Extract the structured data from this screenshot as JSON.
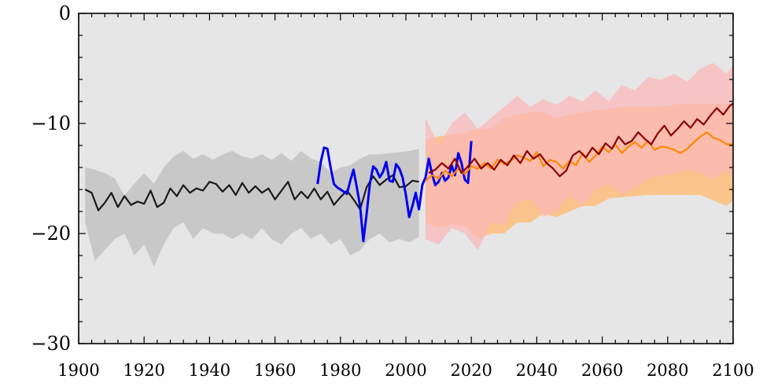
{
  "chart_data": {
    "type": "line",
    "title": "",
    "xlabel": "",
    "ylabel": "",
    "xlim": [
      1900,
      2100
    ],
    "ylim": [
      -30,
      0
    ],
    "x_ticks": [
      1900,
      1920,
      1940,
      1960,
      1980,
      2000,
      2020,
      2040,
      2060,
      2080,
      2100
    ],
    "x_tick_labels": [
      "1900",
      "1920",
      "1940",
      "1960",
      "1980",
      "2000",
      "2020",
      "2040",
      "2060",
      "2080",
      "2100"
    ],
    "y_ticks": [
      0,
      -10,
      -20,
      -30
    ],
    "y_tick_labels": [
      "0",
      "−10",
      "−20",
      "−30"
    ],
    "grid": false,
    "background": "#e6e6e6",
    "bands": [
      {
        "color": "#c8c8c8",
        "x": [
          1902,
          1905,
          1908,
          1911,
          1914,
          1917,
          1920,
          1923,
          1926,
          1929,
          1932,
          1935,
          1938,
          1941,
          1944,
          1947,
          1950,
          1953,
          1956,
          1959,
          1962,
          1965,
          1968,
          1971,
          1974,
          1977,
          1980,
          1983,
          1986,
          1989,
          1992,
          1995,
          1998,
          2001,
          2004
        ],
        "upper": [
          -14,
          -14.2,
          -14.5,
          -15,
          -16.5,
          -15.5,
          -14.5,
          -15.5,
          -14,
          -13,
          -12.5,
          -13.2,
          -12.8,
          -13.3,
          -12.8,
          -12.5,
          -13,
          -13.2,
          -12.8,
          -13.3,
          -12.7,
          -13.4,
          -12.5,
          -13.2,
          -13.5,
          -14.5,
          -14,
          -13.8,
          -13.2,
          -12.8,
          -12.8,
          -12.7,
          -12.6,
          -12.5,
          -12.3
        ],
        "lower": [
          -19,
          -22.5,
          -21.5,
          -20.5,
          -20,
          -22,
          -21,
          -23,
          -21,
          -19.5,
          -19,
          -20.5,
          -19.5,
          -20,
          -20,
          -20.5,
          -20,
          -20.5,
          -19.5,
          -20.5,
          -21,
          -20,
          -19.5,
          -20.5,
          -20,
          -21,
          -20.5,
          -22,
          -21.5,
          -20.5,
          -20,
          -20.8,
          -20.5,
          -20.8,
          -20.3
        ]
      },
      {
        "color": "#fbc48c",
        "x": [
          2006,
          2010,
          2014,
          2018,
          2022,
          2026,
          2030,
          2034,
          2038,
          2042,
          2046,
          2050,
          2054,
          2058,
          2062,
          2066,
          2070,
          2074,
          2078,
          2082,
          2086,
          2090,
          2094,
          2098,
          2100
        ],
        "upper": [
          -11.5,
          -11.2,
          -11,
          -10.8,
          -10.5,
          -10.5,
          -9.5,
          -9.2,
          -9,
          -9,
          -9.5,
          -9.2,
          -9,
          -8.8,
          -8.7,
          -8.5,
          -8.5,
          -8.5,
          -8.5,
          -8.3,
          -8.2,
          -8.2,
          -8.2,
          -8.2,
          -8.2
        ],
        "lower": [
          -19,
          -19.5,
          -19.2,
          -19.3,
          -20.5,
          -20,
          -20,
          -19,
          -19,
          -18.2,
          -18.5,
          -18,
          -17.5,
          -17.5,
          -16.8,
          -16.7,
          -16.6,
          -16.5,
          -16.5,
          -16.5,
          -16.5,
          -16.5,
          -17,
          -17.5,
          -17
        ]
      },
      {
        "color": "#fbb8b8",
        "opacity": 0.75,
        "x": [
          2006,
          2010,
          2014,
          2018,
          2022,
          2026,
          2030,
          2034,
          2038,
          2042,
          2046,
          2050,
          2054,
          2058,
          2062,
          2066,
          2070,
          2074,
          2078,
          2082,
          2086,
          2090,
          2094,
          2098,
          2100
        ],
        "upper": [
          -9.5,
          -12,
          -10,
          -9,
          -10.5,
          -9.5,
          -8.5,
          -7.5,
          -8.5,
          -7.8,
          -8.3,
          -7.5,
          -8,
          -7,
          -8,
          -6.5,
          -7,
          -5.8,
          -6,
          -5.5,
          -6.2,
          -5,
          -4.5,
          -5.5,
          -4.7
        ],
        "lower": [
          -20.5,
          -21,
          -19.5,
          -20,
          -21.5,
          -19,
          -19.2,
          -17.2,
          -16.8,
          -18.5,
          -18,
          -16.5,
          -17.5,
          -16,
          -15.5,
          -16.5,
          -15.8,
          -15,
          -14.8,
          -14.5,
          -14.2,
          -14.5,
          -15,
          -14.3,
          -15
        ]
      }
    ],
    "series": [
      {
        "color": "#1a1a1a",
        "x": [
          1902,
          1904,
          1906,
          1908,
          1910,
          1912,
          1914,
          1916,
          1918,
          1920,
          1922,
          1924,
          1926,
          1928,
          1930,
          1932,
          1934,
          1936,
          1938,
          1940,
          1942,
          1944,
          1946,
          1948,
          1950,
          1952,
          1954,
          1956,
          1958,
          1960,
          1962,
          1964,
          1966,
          1968,
          1970,
          1972,
          1974,
          1976,
          1978,
          1980,
          1982,
          1984,
          1986,
          1988,
          1990,
          1992,
          1994,
          1996,
          1998,
          2000,
          2002,
          2004
        ],
        "values": [
          -16,
          -16.3,
          -17.9,
          -17.2,
          -16.3,
          -17.6,
          -16.6,
          -17.4,
          -17.1,
          -17.3,
          -16.1,
          -17.6,
          -17.2,
          -15.9,
          -16.6,
          -15.6,
          -16.3,
          -15.9,
          -16.1,
          -15.3,
          -15.5,
          -16.2,
          -15.6,
          -16.5,
          -15.4,
          -16.3,
          -15.7,
          -16.3,
          -15.9,
          -16.9,
          -16.1,
          -15.3,
          -16.9,
          -16.2,
          -16.8,
          -15.9,
          -16.9,
          -16.2,
          -17.4,
          -16.7,
          -16.1,
          -16.9,
          -17.8,
          -15.8,
          -14.8,
          -15.6,
          -15.1,
          -14.7,
          -15.8,
          -15.7,
          -15.2,
          -15.3
        ]
      },
      {
        "color": "#0000ee",
        "x": [
          1973,
          1974,
          1975,
          1976,
          1977,
          1978,
          1979,
          1980,
          1981,
          1982,
          1983,
          1984,
          1985,
          1986,
          1987,
          1988,
          1989,
          1990,
          1991,
          1992,
          1993,
          1994,
          1995,
          1996,
          1997,
          1998,
          1999,
          2000,
          2001,
          2002,
          2003,
          2004,
          2005,
          2006,
          2007,
          2008,
          2009,
          2010,
          2011,
          2012,
          2013,
          2014,
          2015,
          2016,
          2017,
          2018,
          2019,
          2020
        ],
        "values": [
          -15.5,
          -13.5,
          -12.2,
          -12.3,
          -14,
          -15.5,
          -15.8,
          -16,
          -16.2,
          -16.4,
          -15.2,
          -14.2,
          -15.8,
          -17.5,
          -20.7,
          -18.2,
          -15.5,
          -13.9,
          -14.2,
          -14.9,
          -14.4,
          -13.5,
          -15.2,
          -15.3,
          -13.7,
          -14.1,
          -14.9,
          -16.5,
          -18.5,
          -17.5,
          -16.3,
          -17.8,
          -15.6,
          -14.9,
          -13.2,
          -14.6,
          -15.6,
          -15.3,
          -14.5,
          -15.2,
          -14.9,
          -13.8,
          -14.7,
          -12.7,
          -13.6,
          -15.1,
          -15.4,
          -11.6
        ]
      },
      {
        "color": "#ff8800",
        "x": [
          2006,
          2008,
          2010,
          2012,
          2014,
          2016,
          2018,
          2020,
          2022,
          2024,
          2026,
          2028,
          2030,
          2032,
          2034,
          2036,
          2038,
          2040,
          2042,
          2044,
          2046,
          2048,
          2050,
          2052,
          2054,
          2056,
          2058,
          2060,
          2062,
          2064,
          2066,
          2068,
          2070,
          2072,
          2074,
          2076,
          2078,
          2080,
          2082,
          2084,
          2086,
          2088,
          2090,
          2092,
          2094,
          2096,
          2098,
          2100
        ],
        "values": [
          -15.2,
          -14.7,
          -15,
          -14.3,
          -14.8,
          -14.1,
          -14.6,
          -13.9,
          -14.1,
          -13.6,
          -14.1,
          -13.3,
          -13.7,
          -13.4,
          -12.9,
          -13.1,
          -13.4,
          -12.6,
          -13.9,
          -13.3,
          -13.5,
          -14.1,
          -13.4,
          -13.8,
          -12.7,
          -13.5,
          -12.9,
          -12.1,
          -12.6,
          -11.9,
          -12.7,
          -12.1,
          -11.7,
          -12.2,
          -11.6,
          -12.4,
          -12.1,
          -12.2,
          -12.4,
          -12.7,
          -12.3,
          -11.7,
          -11.2,
          -10.8,
          -11.3,
          -11.5,
          -11.9,
          -11.9
        ]
      },
      {
        "color": "#8b0000",
        "x": [
          2007,
          2009,
          2011,
          2013,
          2015,
          2017,
          2019,
          2021,
          2023,
          2025,
          2027,
          2029,
          2031,
          2033,
          2035,
          2037,
          2039,
          2041,
          2043,
          2045,
          2047,
          2049,
          2051,
          2053,
          2055,
          2057,
          2059,
          2061,
          2063,
          2065,
          2067,
          2069,
          2071,
          2073,
          2075,
          2077,
          2079,
          2081,
          2083,
          2085,
          2087,
          2089,
          2091,
          2093,
          2095,
          2097,
          2099,
          2100
        ],
        "values": [
          -14.5,
          -14.2,
          -13.6,
          -14.1,
          -13.2,
          -14.5,
          -13.9,
          -13.2,
          -14.1,
          -13.6,
          -14.2,
          -13.3,
          -13.8,
          -12.9,
          -13.6,
          -12.5,
          -13.2,
          -12.8,
          -13.6,
          -14.1,
          -14.8,
          -14.3,
          -12.9,
          -12.5,
          -13.1,
          -12.2,
          -12.8,
          -11.8,
          -12.3,
          -11.2,
          -11.9,
          -11.6,
          -10.8,
          -11.4,
          -11.9,
          -10.9,
          -10.2,
          -11.1,
          -10.5,
          -9.8,
          -10.4,
          -9.6,
          -10.1,
          -9.3,
          -8.6,
          -9.2,
          -8.4,
          -8.2
        ]
      }
    ]
  }
}
